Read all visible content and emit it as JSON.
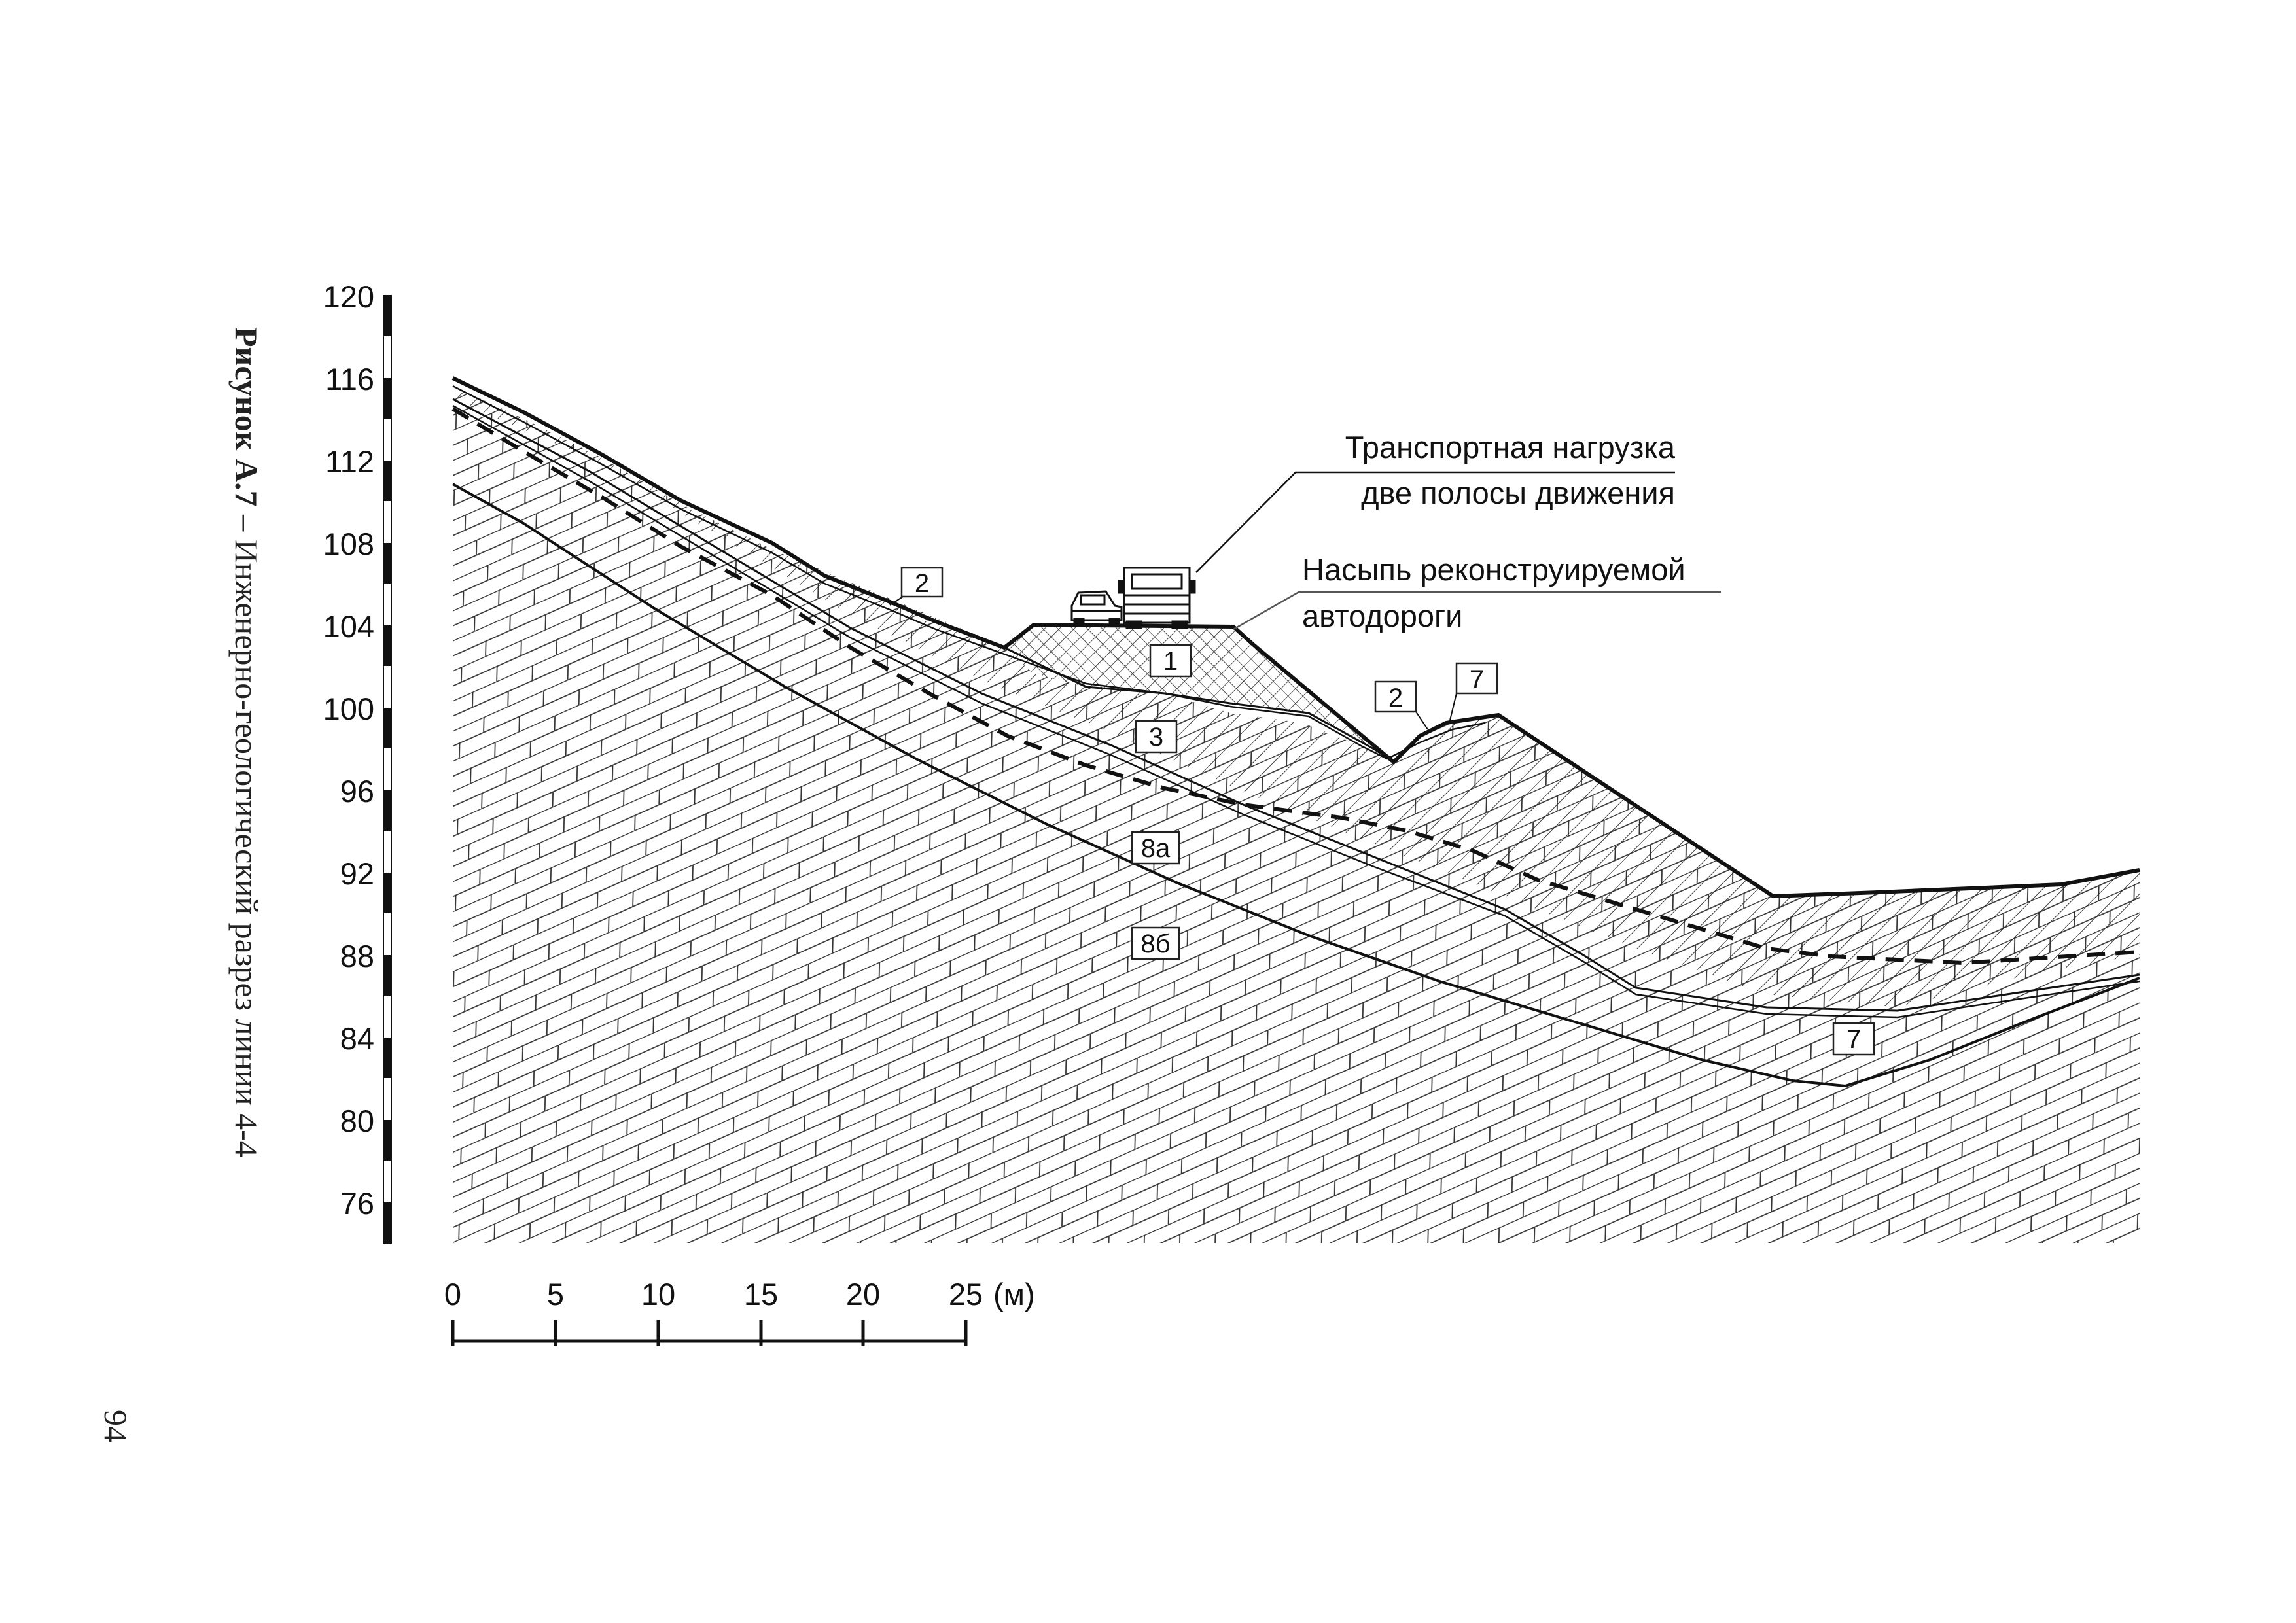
{
  "figure": {
    "caption_bold": "Рисунок А.7",
    "caption_rest": " – Инженерно-геологический разрез линии 4-4",
    "page_number": "94"
  },
  "elevation_axis": {
    "ticks": [
      "120",
      "116",
      "112",
      "108",
      "104",
      "100",
      "96",
      "92",
      "88",
      "84",
      "80",
      "76"
    ]
  },
  "distance_scale": {
    "ticks": [
      "0",
      "5",
      "10",
      "15",
      "20",
      "25"
    ],
    "unit": "(м)"
  },
  "annotations": {
    "load_line1": "Транспортная нагрузка",
    "load_line2": "две полосы движения",
    "embankment_line1": "Насыпь реконструируемой",
    "embankment_line2": "автодороги"
  },
  "layer_tags": {
    "t2a": "2",
    "t1": "1",
    "t2b": "2",
    "t7a": "7",
    "t3": "3",
    "t8a": "8а",
    "t8b": "8б",
    "t7b": "7"
  }
}
